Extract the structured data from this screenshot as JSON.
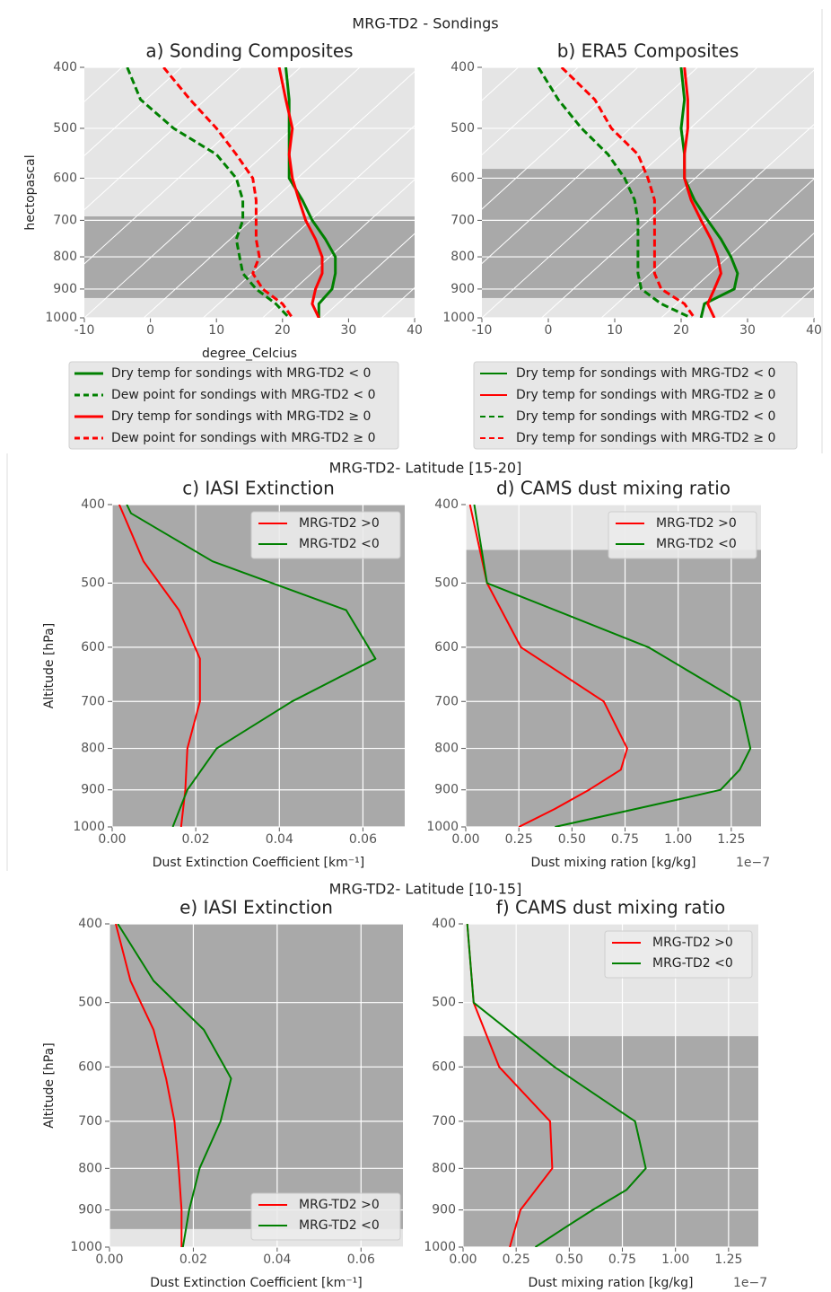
{
  "suptitles": [
    "MRG-TD2 - Sondings",
    "MRG-TD2- Latitude [15-20]",
    "MRG-TD2- Latitude [10-15]"
  ],
  "chart_data": [
    {
      "type": "line",
      "title": "a) Sonding Composites",
      "xlabel": "degree_Celcius",
      "ylabel": "hectopascal",
      "xlim": [
        -10,
        40
      ],
      "xticks": [
        -10,
        0,
        10,
        20,
        30,
        40
      ],
      "ylim": [
        1000,
        400
      ],
      "yticks": [
        400,
        500,
        600,
        700,
        800,
        900,
        1000
      ],
      "ylog": true,
      "skewed_isotherms": true,
      "grid": true,
      "shaded": [
        [
          690,
          930
        ]
      ],
      "legend": "below",
      "series": [
        {
          "name": "Dry temp for sondings with MRG-TD2 < 0",
          "color": "#008000",
          "dash": false,
          "y": [
            400,
            450,
            500,
            550,
            600,
            650,
            700,
            750,
            800,
            850,
            900,
            950,
            1000
          ],
          "values": [
            20.5,
            21,
            21,
            21,
            21,
            23,
            24.5,
            26.5,
            28,
            28,
            27.5,
            25.5,
            25.5
          ]
        },
        {
          "name": "Dew point for sondings with MRG-TD2 < 0",
          "color": "#008000",
          "dash": true,
          "y": [
            400,
            450,
            500,
            550,
            600,
            650,
            700,
            750,
            800,
            850,
            900,
            950,
            1000
          ],
          "values": [
            -3.5,
            -1.5,
            3.5,
            10,
            13,
            14,
            14,
            13,
            13.5,
            14,
            16,
            19,
            21
          ]
        },
        {
          "name": "Dry temp for sondings with MRG-TD2  ≥  0",
          "color": "#ff0000",
          "dash": false,
          "y": [
            400,
            450,
            500,
            550,
            600,
            650,
            700,
            750,
            800,
            850,
            900,
            950,
            1000
          ],
          "values": [
            19.5,
            20.5,
            21.5,
            21,
            21.5,
            22.5,
            23.5,
            25,
            26,
            26,
            25,
            24.5,
            25.5
          ]
        },
        {
          "name": "Dew point for sondings with MRG-TD2  ≥  0",
          "color": "#ff0000",
          "dash": true,
          "y": [
            400,
            450,
            500,
            550,
            600,
            650,
            700,
            750,
            800,
            850,
            900,
            950,
            1000
          ],
          "values": [
            2,
            6,
            10,
            13,
            15.5,
            16,
            16,
            16,
            16.5,
            15.5,
            17,
            20,
            21.5
          ]
        }
      ]
    },
    {
      "type": "line",
      "title": "b) ERA5 Composites",
      "xlim": [
        -10,
        40
      ],
      "xticks": [
        -10,
        0,
        10,
        20,
        30,
        40
      ],
      "ylim": [
        1000,
        400
      ],
      "yticks": [
        400,
        500,
        600,
        700,
        800,
        900,
        1000
      ],
      "ylog": true,
      "skewed_isotherms": true,
      "grid": true,
      "shaded": [
        [
          580,
          930
        ]
      ],
      "legend": "below",
      "series": [
        {
          "name": "Dry temp for sondings with MRG-TD2 < 0",
          "color": "#008000",
          "dash": false,
          "y": [
            400,
            450,
            500,
            550,
            600,
            650,
            700,
            750,
            800,
            850,
            900,
            950,
            1000
          ],
          "values": [
            20,
            20.5,
            20,
            20.5,
            20.5,
            22,
            24,
            26,
            27.5,
            28.5,
            28,
            23.5,
            23
          ]
        },
        {
          "name": "Dry temp for sondings with MRG-TD2 ≥ 0",
          "color": "#ff0000",
          "dash": false,
          "y": [
            400,
            450,
            500,
            550,
            600,
            650,
            700,
            750,
            800,
            850,
            900,
            950,
            1000
          ],
          "values": [
            20.5,
            21,
            21,
            20.5,
            20.5,
            21.5,
            23,
            24.5,
            25.5,
            26,
            25,
            24,
            25
          ]
        },
        {
          "name": "Dry temp for sondings with MRG-TD2 < 0",
          "color": "#008000",
          "dash": true,
          "y": [
            400,
            450,
            500,
            550,
            600,
            650,
            700,
            750,
            800,
            850,
            900,
            950,
            1000
          ],
          "values": [
            -1.5,
            1.5,
            5,
            9,
            11.5,
            13,
            13.5,
            13.5,
            13.5,
            13.5,
            14,
            17,
            21.5
          ]
        },
        {
          "name": "Dry temp for sondings with MRG-TD2 ≥ 0",
          "color": "#ff0000",
          "dash": true,
          "y": [
            400,
            450,
            500,
            550,
            600,
            650,
            700,
            750,
            800,
            850,
            900,
            950,
            1000
          ],
          "values": [
            2,
            7,
            9.5,
            13.5,
            15,
            16,
            16,
            16,
            16,
            16,
            17,
            20.5,
            22
          ]
        }
      ]
    },
    {
      "type": "line",
      "title": "c) IASI Extinction",
      "xlabel": "Dust Extinction Coefficient [km⁻¹]",
      "ylabel": "Altitude [hPa]",
      "xlim": [
        0,
        0.07
      ],
      "xticks": [
        {
          "value": 0,
          "label": "0.00"
        },
        0.02,
        0.04,
        0.06
      ],
      "ylim": [
        1000,
        400
      ],
      "yticks": [
        400,
        500,
        600,
        700,
        800,
        900,
        1000
      ],
      "ylog": true,
      "grid": true,
      "shaded": [
        [
          400,
          1000
        ]
      ],
      "legend": "upper right",
      "series": [
        {
          "name": "MRG-TD2 >0",
          "color": "#ff0000",
          "dash": false,
          "y": [
            400,
            470,
            540,
            620,
            700,
            800,
            900,
            1000
          ],
          "values": [
            0.0017,
            0.0075,
            0.016,
            0.021,
            0.021,
            0.018,
            0.0175,
            0.0165
          ]
        },
        {
          "name": "MRG-TD2 <0",
          "color": "#008000",
          "dash": false,
          "y": [
            400,
            410,
            470,
            540,
            620,
            700,
            800,
            900,
            1000
          ],
          "values": [
            0.0035,
            0.0045,
            0.024,
            0.056,
            0.063,
            0.043,
            0.025,
            0.018,
            0.0145
          ]
        }
      ]
    },
    {
      "type": "line",
      "title": "d) CAMS dust mixing ratio",
      "xlabel": "Dust mixing ration [kg/kg]",
      "x_offset_label": "1e−7",
      "xlim": [
        0,
        1.39
      ],
      "xticks": [
        {
          "value": 0,
          "label": "0.00"
        },
        0.25,
        {
          "value": 0.5,
          "label": "0.50"
        },
        0.75,
        {
          "value": 1,
          "label": "1.00"
        },
        1.25
      ],
      "ylim": [
        1000,
        400
      ],
      "yticks": [
        400,
        500,
        600,
        700,
        800,
        900,
        1000
      ],
      "ylog": true,
      "grid": true,
      "shaded": [
        [
          455,
          1000
        ]
      ],
      "legend": "upper center",
      "series": [
        {
          "name": "MRG-TD2 >0",
          "color": "#ff0000",
          "dash": false,
          "y": [
            400,
            500,
            600,
            700,
            800,
            850,
            900,
            950,
            1000
          ],
          "values": [
            0.02,
            0.1,
            0.26,
            0.65,
            0.76,
            0.73,
            0.58,
            0.42,
            0.25
          ]
        },
        {
          "name": "MRG-TD2 <0",
          "color": "#008000",
          "dash": false,
          "y": [
            400,
            500,
            600,
            700,
            800,
            850,
            900,
            920,
            1000
          ],
          "values": [
            0.04,
            0.1,
            0.86,
            1.29,
            1.34,
            1.29,
            1.2,
            1.04,
            0.42
          ]
        }
      ]
    },
    {
      "type": "line",
      "title": "e) IASI Extinction",
      "xlabel": "Dust Extinction Coefficient [km⁻¹]",
      "ylabel": "Altitude [hPa]",
      "xlim": [
        0,
        0.07
      ],
      "xticks": [
        {
          "value": 0,
          "label": "0.00"
        },
        0.02,
        0.04,
        0.06
      ],
      "ylim": [
        1000,
        400
      ],
      "yticks": [
        400,
        500,
        600,
        700,
        800,
        900,
        1000
      ],
      "ylog": true,
      "grid": true,
      "shaded": [
        [
          400,
          950
        ]
      ],
      "legend": "lower right",
      "series": [
        {
          "name": "MRG-TD2 >0",
          "color": "#ff0000",
          "dash": false,
          "y": [
            400,
            470,
            540,
            620,
            700,
            800,
            900,
            1000
          ],
          "values": [
            0.0015,
            0.005,
            0.0105,
            0.0135,
            0.0155,
            0.0165,
            0.0172,
            0.0172
          ]
        },
        {
          "name": "MRG-TD2 <0",
          "color": "#008000",
          "dash": false,
          "y": [
            400,
            470,
            540,
            620,
            700,
            800,
            900,
            1000
          ],
          "values": [
            0.002,
            0.0105,
            0.0225,
            0.029,
            0.0265,
            0.0215,
            0.019,
            0.0175
          ]
        }
      ]
    },
    {
      "type": "line",
      "title": "f) CAMS dust mixing ratio",
      "xlabel": "Dust mixing ration [kg/kg]",
      "x_offset_label": "1e−7",
      "xlim": [
        0,
        1.39
      ],
      "xticks": [
        {
          "value": 0,
          "label": "0.00"
        },
        0.25,
        {
          "value": 0.5,
          "label": "0.50"
        },
        0.75,
        {
          "value": 1,
          "label": "1.00"
        },
        1.25
      ],
      "ylim": [
        1000,
        400
      ],
      "yticks": [
        400,
        500,
        600,
        700,
        800,
        900,
        1000
      ],
      "ylog": true,
      "grid": true,
      "shaded": [
        [
          550,
          1000
        ]
      ],
      "legend": "upper right",
      "series": [
        {
          "name": "MRG-TD2 >0",
          "color": "#ff0000",
          "dash": false,
          "y": [
            400,
            500,
            600,
            700,
            800,
            900,
            1000
          ],
          "values": [
            0.02,
            0.05,
            0.17,
            0.41,
            0.42,
            0.27,
            0.22
          ]
        },
        {
          "name": "MRG-TD2 <0",
          "color": "#008000",
          "dash": false,
          "y": [
            400,
            500,
            600,
            700,
            800,
            850,
            900,
            950,
            1000
          ],
          "values": [
            0.02,
            0.05,
            0.43,
            0.81,
            0.86,
            0.77,
            0.61,
            0.47,
            0.34
          ]
        }
      ]
    }
  ]
}
